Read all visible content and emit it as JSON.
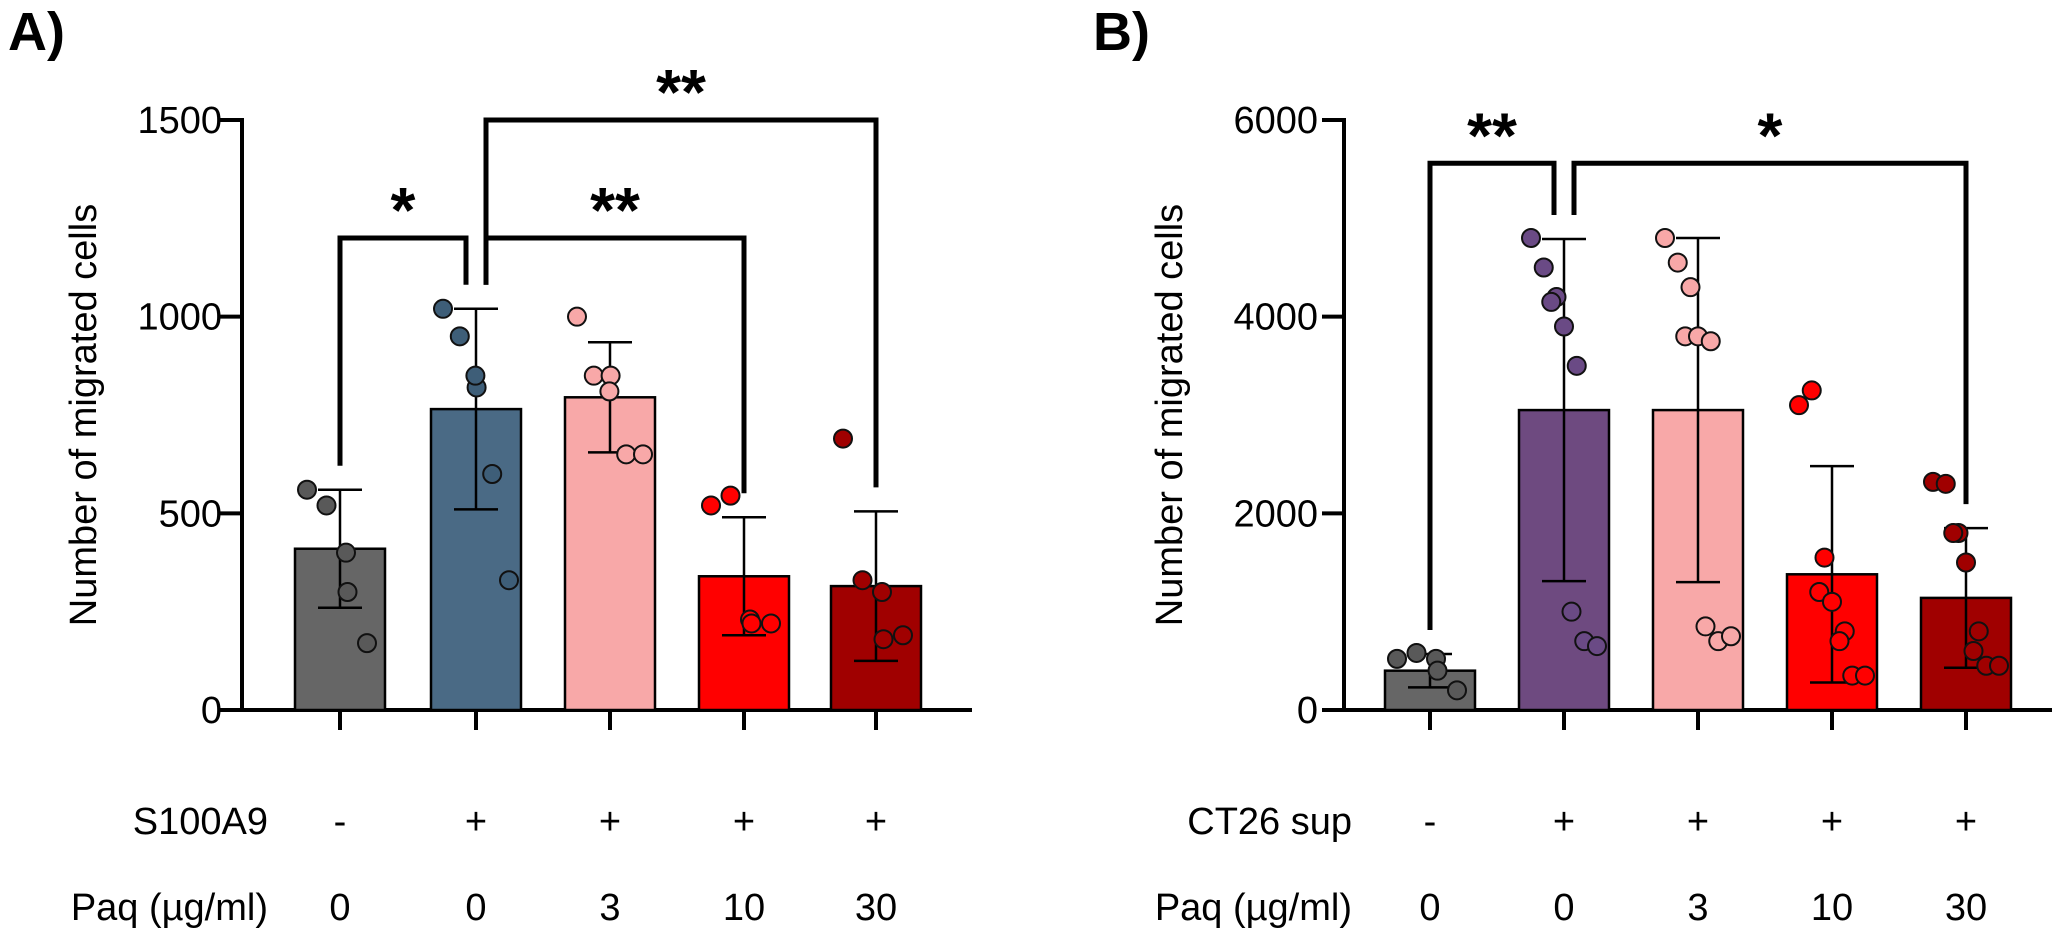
{
  "chart_data": [
    {
      "type": "bar",
      "panel": "A)",
      "title": "",
      "xlabel": "",
      "ylabel": "Number of migrated cells",
      "ylim": [
        0,
        1500
      ],
      "yticks": [
        0,
        500,
        1000,
        1500
      ],
      "grid": false,
      "categories": [
        "-/0",
        "+/0",
        "+/3",
        "+/10",
        "+/30"
      ],
      "colors": [
        "#666666",
        "#4a6a85",
        "#f8a8a8",
        "#ff0000",
        "#a00000"
      ],
      "point_colors": [
        "#595959",
        "#3e5e78",
        "#f8a8a8",
        "#ff0000",
        "#a00000"
      ],
      "means": [
        410,
        765,
        795,
        340,
        315
      ],
      "sd": [
        150,
        255,
        140,
        150,
        190
      ],
      "points": [
        [
          560,
          520,
          400,
          300,
          170
        ],
        [
          1020,
          950,
          820,
          850,
          600,
          330
        ],
        [
          1000,
          850,
          850,
          810,
          650,
          650
        ],
        [
          520,
          545,
          230,
          220,
          220
        ],
        [
          690,
          330,
          300,
          180,
          190
        ]
      ],
      "rows": [
        {
          "label": "S100A9",
          "values": [
            "-",
            "+",
            "+",
            "+",
            "+"
          ]
        },
        {
          "label": "Paq (µg/ml)",
          "values": [
            "0",
            "0",
            "3",
            "10",
            "30"
          ]
        }
      ],
      "significance": [
        {
          "from": 0,
          "to": 1,
          "label": "*",
          "y": 1200
        },
        {
          "from": 1,
          "to": 3,
          "label": "**",
          "y": 1200
        },
        {
          "from": 1,
          "to": 4,
          "label": "**",
          "y": 1500
        }
      ]
    },
    {
      "type": "bar",
      "panel": "B)",
      "title": "",
      "xlabel": "",
      "ylabel": "Number of migrated cells",
      "ylim": [
        0,
        6000
      ],
      "yticks": [
        0,
        2000,
        4000,
        6000
      ],
      "grid": false,
      "categories": [
        "-/0",
        "+/0",
        "+/3",
        "+/10",
        "+/30"
      ],
      "colors": [
        "#666666",
        "#6e4a80",
        "#f8a8a8",
        "#ff0000",
        "#a00000"
      ],
      "point_colors": [
        "#595959",
        "#6a4a85",
        "#f8a8a8",
        "#ff0000",
        "#a00000"
      ],
      "means": [
        400,
        3050,
        3050,
        1380,
        1140
      ],
      "sd": [
        170,
        1740,
        1750,
        1100,
        710
      ],
      "points": [
        [
          520,
          580,
          520,
          400,
          200
        ],
        [
          4800,
          4500,
          4200,
          4150,
          3900,
          3500,
          1000,
          700,
          650
        ],
        [
          4800,
          4550,
          4300,
          3800,
          3800,
          3750,
          850,
          700,
          750
        ],
        [
          3100,
          3250,
          1550,
          1200,
          1100,
          800,
          700,
          350,
          350
        ],
        [
          2320,
          2300,
          1800,
          1800,
          1500,
          800,
          600,
          450,
          450
        ]
      ],
      "rows": [
        {
          "label": "CT26 sup",
          "values": [
            "-",
            "+",
            "+",
            "+",
            "+"
          ]
        },
        {
          "label": "Paq (µg/ml)",
          "values": [
            "0",
            "0",
            "3",
            "10",
            "30"
          ]
        }
      ],
      "significance": [
        {
          "from": 0,
          "to": 1,
          "label": "**",
          "y": 5560
        },
        {
          "from": 1,
          "to": 4,
          "label": "*",
          "y": 5560
        }
      ]
    }
  ]
}
